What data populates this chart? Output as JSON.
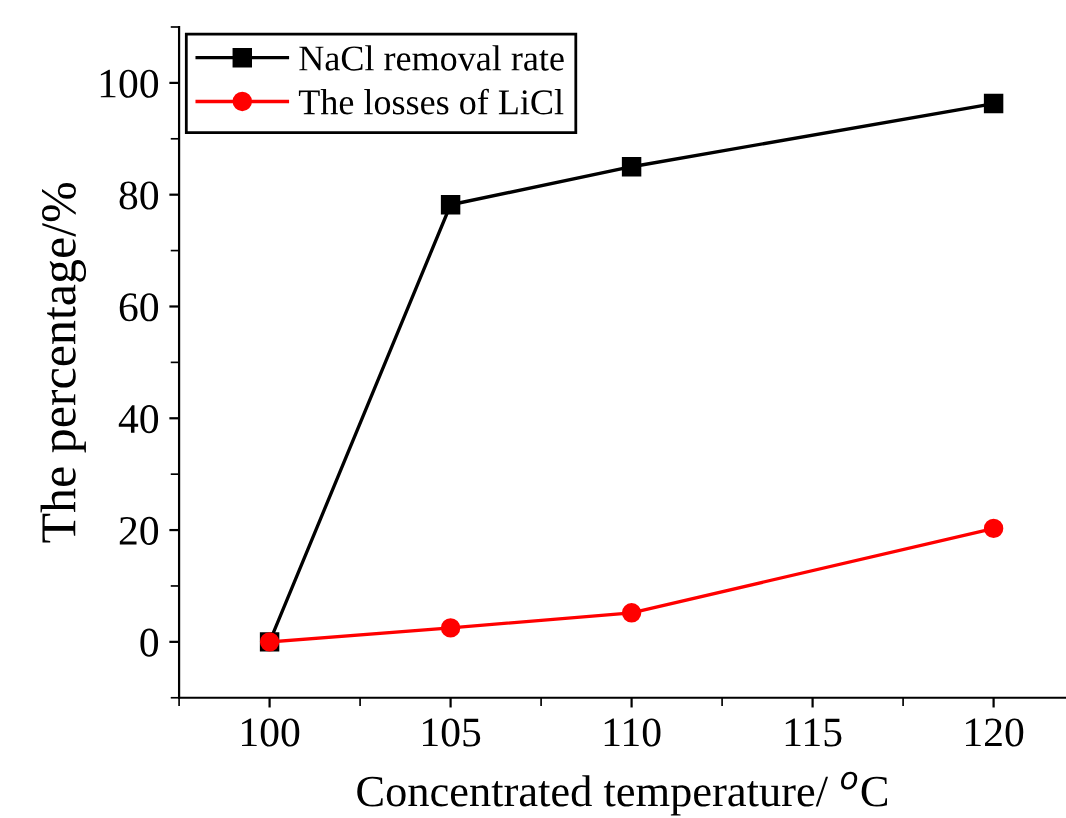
{
  "chart_data": {
    "type": "line",
    "xlabel": "Concentrated temperature/ $^{o}$C",
    "ylabel": "The percentage/%",
    "x": [
      100,
      105,
      110,
      120
    ],
    "series": [
      {
        "name": "NaCl removal rate",
        "color": "#000000",
        "marker": "square",
        "values": [
          0,
          78.2,
          85,
          96.3
        ]
      },
      {
        "name": "The losses of LiCl",
        "color": "#ff0000",
        "marker": "circle",
        "values": [
          0,
          2.5,
          5.2,
          20.3
        ]
      }
    ],
    "xlim": [
      97.5,
      122
    ],
    "xticks": [
      100,
      105,
      110,
      115,
      120
    ],
    "ylim": [
      -10,
      110
    ],
    "yticks": [
      0,
      20,
      40,
      60,
      80,
      100
    ],
    "grid": false,
    "legend": "top left",
    "line_style": "solid"
  }
}
